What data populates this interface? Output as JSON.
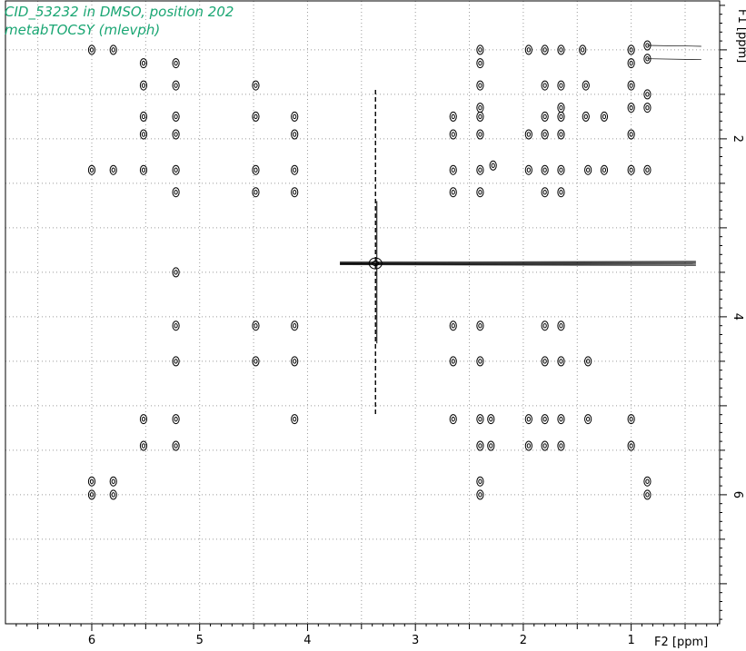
{
  "colors": {
    "title": "#1aa673",
    "frame": "#000000",
    "grid": "#9a9a9a",
    "contour": "#000000"
  },
  "chart_data": {
    "type": "contour",
    "title": "CID_53232 in DMSO, position 202",
    "subtitle": "metabTOCSY (mlevph)",
    "xlabel": "F2 [ppm]",
    "ylabel": "F1 [ppm]",
    "xlim": [
      6.8,
      0.18
    ],
    "ylim": [
      0.45,
      7.45
    ],
    "x_ticks": [
      6,
      5,
      4,
      3,
      2,
      1
    ],
    "y_ticks": [
      2,
      4,
      6
    ],
    "grid": true,
    "peaks": [
      [
        6.0,
        1.0
      ],
      [
        5.8,
        1.0
      ],
      [
        5.52,
        1.15
      ],
      [
        5.52,
        1.4
      ],
      [
        5.52,
        1.75
      ],
      [
        5.52,
        1.95
      ],
      [
        5.52,
        2.35
      ],
      [
        5.22,
        1.15
      ],
      [
        5.22,
        1.4
      ],
      [
        5.22,
        1.75
      ],
      [
        5.22,
        1.95
      ],
      [
        5.22,
        2.35
      ],
      [
        5.22,
        2.6
      ],
      [
        5.22,
        3.5
      ],
      [
        5.22,
        4.1
      ],
      [
        5.22,
        4.5
      ],
      [
        5.22,
        5.15
      ],
      [
        5.22,
        5.45
      ],
      [
        4.48,
        1.4
      ],
      [
        4.48,
        1.75
      ],
      [
        4.48,
        2.35
      ],
      [
        4.48,
        2.6
      ],
      [
        4.48,
        4.1
      ],
      [
        4.48,
        4.5
      ],
      [
        4.12,
        1.75
      ],
      [
        4.12,
        1.95
      ],
      [
        4.12,
        2.35
      ],
      [
        4.12,
        2.6
      ],
      [
        4.12,
        4.1
      ],
      [
        4.12,
        4.5
      ],
      [
        4.12,
        5.15
      ],
      [
        6.0,
        2.35
      ],
      [
        5.8,
        2.35
      ],
      [
        5.52,
        5.15
      ],
      [
        5.52,
        5.45
      ],
      [
        2.65,
        1.75
      ],
      [
        2.65,
        1.95
      ],
      [
        2.65,
        2.35
      ],
      [
        2.65,
        2.6
      ],
      [
        2.65,
        4.1
      ],
      [
        2.65,
        4.5
      ],
      [
        2.65,
        5.15
      ],
      [
        2.4,
        1.0
      ],
      [
        2.4,
        1.15
      ],
      [
        2.4,
        1.4
      ],
      [
        2.4,
        1.65
      ],
      [
        2.4,
        1.75
      ],
      [
        2.4,
        1.95
      ],
      [
        2.4,
        2.35
      ],
      [
        2.4,
        2.6
      ],
      [
        2.4,
        4.1
      ],
      [
        2.4,
        4.5
      ],
      [
        2.4,
        5.15
      ],
      [
        2.4,
        5.45
      ],
      [
        2.4,
        5.85
      ],
      [
        2.4,
        6.0
      ],
      [
        2.28,
        2.3
      ],
      [
        2.3,
        5.45
      ],
      [
        2.3,
        5.15
      ],
      [
        1.95,
        1.0
      ],
      [
        1.95,
        1.95
      ],
      [
        1.95,
        2.35
      ],
      [
        1.95,
        5.15
      ],
      [
        1.95,
        5.45
      ],
      [
        1.8,
        1.0
      ],
      [
        1.8,
        1.4
      ],
      [
        1.8,
        1.75
      ],
      [
        1.8,
        1.95
      ],
      [
        1.8,
        2.35
      ],
      [
        1.8,
        2.6
      ],
      [
        1.8,
        4.1
      ],
      [
        1.8,
        4.5
      ],
      [
        1.8,
        5.15
      ],
      [
        1.8,
        5.45
      ],
      [
        1.65,
        1.0
      ],
      [
        1.65,
        1.4
      ],
      [
        1.65,
        1.65
      ],
      [
        1.65,
        1.75
      ],
      [
        1.65,
        1.95
      ],
      [
        1.65,
        2.35
      ],
      [
        1.65,
        2.6
      ],
      [
        1.65,
        4.1
      ],
      [
        1.65,
        4.5
      ],
      [
        1.65,
        5.15
      ],
      [
        1.65,
        5.45
      ],
      [
        1.45,
        1.0
      ],
      [
        1.42,
        1.4
      ],
      [
        1.42,
        1.75
      ],
      [
        1.4,
        2.35
      ],
      [
        1.4,
        4.5
      ],
      [
        1.4,
        5.15
      ],
      [
        1.25,
        2.35
      ],
      [
        1.25,
        1.75
      ],
      [
        1.0,
        1.0
      ],
      [
        1.0,
        1.15
      ],
      [
        1.0,
        1.4
      ],
      [
        1.0,
        1.65
      ],
      [
        1.0,
        1.95
      ],
      [
        1.0,
        2.35
      ],
      [
        1.0,
        5.15
      ],
      [
        1.0,
        5.45
      ],
      [
        0.85,
        0.95
      ],
      [
        0.85,
        1.1
      ],
      [
        0.85,
        1.5
      ],
      [
        0.85,
        1.65
      ],
      [
        0.85,
        2.35
      ],
      [
        0.85,
        5.85
      ],
      [
        0.85,
        6.0
      ],
      [
        6.0,
        5.85
      ],
      [
        6.0,
        6.0
      ],
      [
        5.8,
        5.85
      ],
      [
        5.8,
        6.0
      ],
      [
        3.37,
        3.4
      ]
    ],
    "solvent_line": {
      "x": 3.37,
      "y": 3.4
    }
  }
}
